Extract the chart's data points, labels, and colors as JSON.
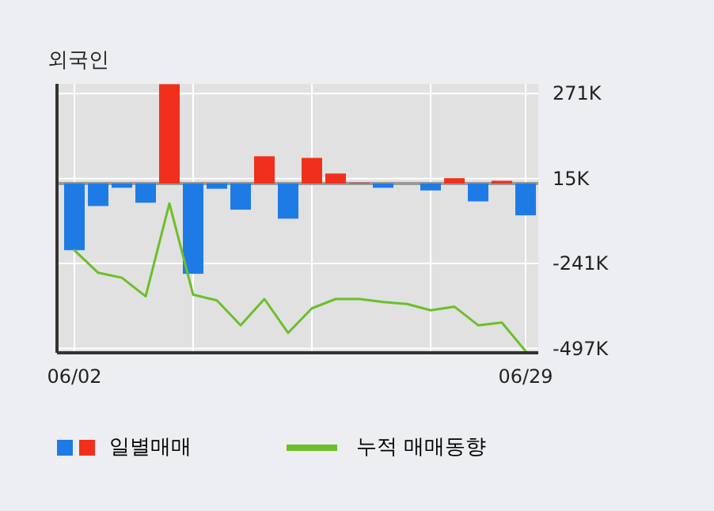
{
  "chart_data": {
    "type": "bar",
    "title": "외국인",
    "categories": [
      "06/02",
      null,
      null,
      null,
      null,
      null,
      null,
      null,
      null,
      null,
      null,
      null,
      null,
      null,
      null,
      null,
      null,
      null,
      null,
      "06/29"
    ],
    "series": [
      {
        "name": "일별매매",
        "values": [
          -201,
          -68,
          -13,
          -58,
          299,
          -272,
          -16,
          -79,
          82,
          -106,
          77,
          30,
          2,
          -13,
          0,
          -21,
          16,
          -54,
          8,
          -96
        ],
        "colors": [
          "#1e7be6",
          "#1e7be6",
          "#1e7be6",
          "#1e7be6",
          "#f0301c",
          "#1e7be6",
          "#1e7be6",
          "#1e7be6",
          "#f0301c",
          "#1e7be6",
          "#f0301c",
          "#f0301c",
          "#f0301c",
          "#1e7be6",
          "#1e7be6",
          "#1e7be6",
          "#f0301c",
          "#1e7be6",
          "#f0301c",
          "#1e7be6"
        ]
      },
      {
        "name": "누적 매매동향",
        "type": "line",
        "color": "#6cbf2a",
        "values": [
          -201,
          -269,
          -284,
          -340,
          -60,
          -335,
          -352,
          -427,
          -348,
          -450,
          -376,
          -348,
          -348,
          -357,
          -363,
          -382,
          -371,
          -427,
          -419,
          -505
        ]
      }
    ],
    "ylim": [
      -510,
      300
    ],
    "yticks": [
      {
        "value": 271,
        "label": "271K"
      },
      {
        "value": 15,
        "label": "15K"
      },
      {
        "value": -241,
        "label": "-241K"
      },
      {
        "value": -497,
        "label": "-497K"
      }
    ],
    "grid": true,
    "legend": "bottom left"
  }
}
